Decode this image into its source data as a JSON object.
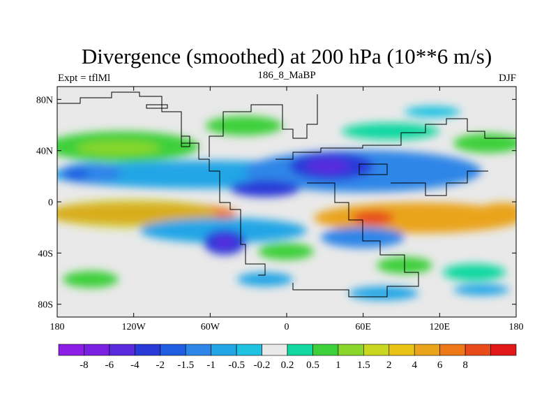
{
  "title": "Divergence (smoothed) at 200 hPa (10**6 m/s)",
  "subtitle_left": "Expt = tflMl",
  "subtitle_center": "186_8_MaBP",
  "subtitle_right": "DJF",
  "chart_data": {
    "type": "heatmap",
    "title": "Divergence (smoothed) at 200 hPa (10**6 m/s)",
    "projection": "cylindrical equidistant",
    "xlim": [
      -180,
      180
    ],
    "ylim": [
      -90,
      90
    ],
    "x_ticks": [
      {
        "value": -180,
        "label": "180"
      },
      {
        "value": -120,
        "label": "120W"
      },
      {
        "value": -60,
        "label": "60W"
      },
      {
        "value": 0,
        "label": "0"
      },
      {
        "value": 60,
        "label": "60E"
      },
      {
        "value": 120,
        "label": "120E"
      },
      {
        "value": 180,
        "label": "180"
      }
    ],
    "y_ticks": [
      {
        "value": 80,
        "label": "80N"
      },
      {
        "value": 40,
        "label": "40N"
      },
      {
        "value": 0,
        "label": "0"
      },
      {
        "value": -40,
        "label": "40S"
      },
      {
        "value": -80,
        "label": "80S"
      }
    ],
    "colorbar": {
      "colors": [
        "#8c1ee6",
        "#7a20e0",
        "#5a2adf",
        "#2a3ad8",
        "#1f5ee0",
        "#2e86e8",
        "#23a6e6",
        "#1fc2e0",
        "#e9e9e9",
        "#10d8a0",
        "#3ed03a",
        "#8ad62a",
        "#c9d81e",
        "#e8c418",
        "#eaa41c",
        "#ec7818",
        "#e84a1a",
        "#e01818"
      ],
      "labels": [
        "-8",
        "-6",
        "-4",
        "-2",
        "-1.5",
        "-1",
        "-0.5",
        "-0.2",
        "0.2",
        "0.5",
        "1",
        "1.5",
        "2",
        "4",
        "6",
        "8"
      ]
    },
    "features": [
      {
        "name": "equatorial-positive-band-west",
        "lon": -140,
        "lat": -10,
        "value": 5
      },
      {
        "name": "equatorial-positive-band-east",
        "lon": 100,
        "lat": -10,
        "value": 4
      },
      {
        "name": "indian-ocean-max",
        "lon": 50,
        "lat": -12,
        "value": 6
      },
      {
        "name": "eurasia-convergence",
        "lon": 25,
        "lat": 25,
        "value": -6
      },
      {
        "name": "atlantic-convergence",
        "lon": -15,
        "lat": 5,
        "value": -3
      },
      {
        "name": "south-america-convergence",
        "lon": -65,
        "lat": -30,
        "value": -5
      },
      {
        "name": "northern-midlatitude-divergence",
        "lon": -130,
        "lat": 40,
        "value": 1.5
      }
    ]
  }
}
